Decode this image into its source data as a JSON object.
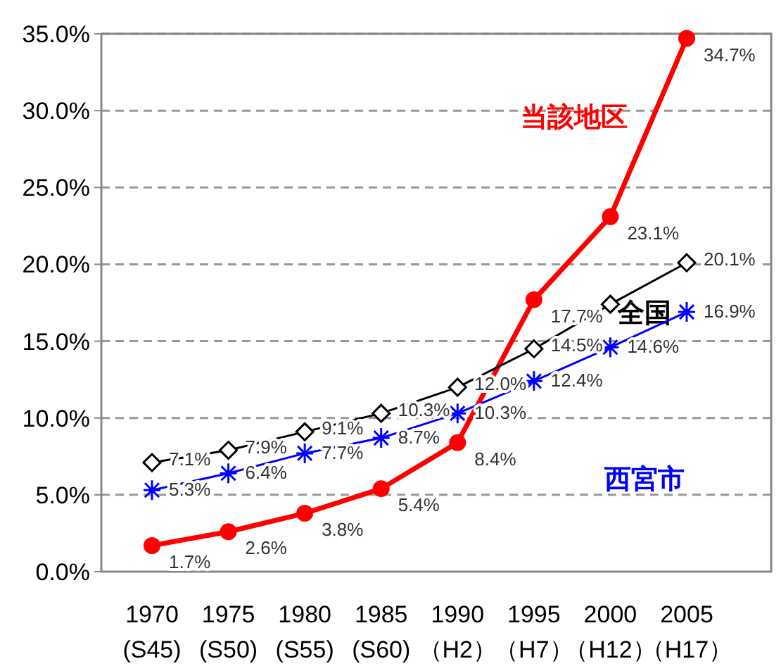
{
  "chart_data": {
    "type": "line",
    "categories": [
      "1970\n(S45)",
      "1975\n(S50)",
      "1980\n(S55)",
      "1985\n(S60)",
      "1990\n（H2）",
      "1995\n（H7）",
      "2000\n（H12）",
      "2005\n（H17）"
    ],
    "series": [
      {
        "name": "当該地区",
        "color": "#ff0000",
        "marker": "circle",
        "values": [
          1.7,
          2.6,
          3.8,
          5.4,
          8.4,
          17.7,
          23.1,
          34.7
        ],
        "value_labels": [
          "1.7%",
          "2.6%",
          "3.8%",
          "5.4%",
          "8.4%",
          "17.7%",
          "23.1%",
          "34.7%"
        ]
      },
      {
        "name": "全国",
        "color": "#000000",
        "marker": "diamond",
        "values": [
          7.1,
          7.9,
          9.1,
          10.3,
          12.0,
          14.5,
          17.4,
          20.1
        ],
        "value_labels": [
          "7.1%",
          "7.9%",
          "9.1%",
          "10.3%",
          "12.0%",
          "14.5%",
          null,
          "20.1%"
        ]
      },
      {
        "name": "西宮市",
        "color": "#0000ff",
        "marker": "cross",
        "values": [
          5.3,
          6.4,
          7.7,
          8.7,
          10.3,
          12.4,
          14.6,
          16.9
        ],
        "value_labels": [
          "5.3%",
          "6.4%",
          "7.7%",
          "8.7%",
          "10.3%",
          "12.4%",
          "14.6%",
          "16.9%"
        ]
      }
    ],
    "ylim": [
      0,
      35
    ],
    "yticks": [
      {
        "value": 0,
        "label": "0.0%"
      },
      {
        "value": 5,
        "label": "5.0%"
      },
      {
        "value": 10,
        "label": "10.0%"
      },
      {
        "value": 15,
        "label": "15.0%"
      },
      {
        "value": 20,
        "label": "20.0%"
      },
      {
        "value": 25,
        "label": "25.0%"
      },
      {
        "value": 30,
        "label": "30.0%"
      },
      {
        "value": 35,
        "label": "35.0%"
      }
    ],
    "grid": "y",
    "legend": false
  }
}
